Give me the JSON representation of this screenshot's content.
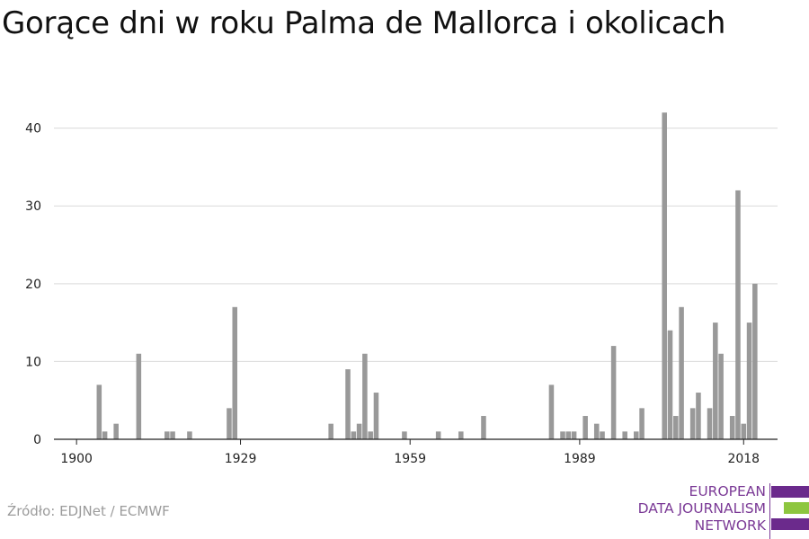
{
  "header": {
    "title": "Gorące dni w roku Palma de Mallorca i okolicach"
  },
  "footer": {
    "source": "Źródło: EDJNet / ECMWF",
    "logo": {
      "lines": [
        "EUROPEAN",
        "DATA JOURNALISM",
        "NETWORK"
      ],
      "colors": {
        "purple": "#6b2a8c",
        "green": "#8dc63f"
      }
    }
  },
  "chart_data": {
    "type": "bar",
    "title": "Gorące dni w roku Palma de Mallorca i okolicach",
    "xlabel": "",
    "ylabel": "",
    "xlim": [
      1896,
      2024
    ],
    "ylim": [
      0,
      44
    ],
    "x_ticks": [
      1900,
      1929,
      1959,
      1989,
      2018
    ],
    "y_ticks": [
      0,
      10,
      20,
      30,
      40
    ],
    "grid": true,
    "bar_color": "#999999",
    "series": [
      {
        "x": [
          1904,
          1905,
          1907,
          1911,
          1916,
          1917,
          1920,
          1927,
          1928,
          1945,
          1948,
          1949,
          1950,
          1951,
          1952,
          1953,
          1958,
          1964,
          1968,
          1972,
          1984,
          1986,
          1987,
          1988,
          1990,
          1992,
          1993,
          1995,
          1997,
          1999,
          2000,
          2004,
          2005,
          2006,
          2007,
          2009,
          2010,
          2012,
          2013,
          2014,
          2016,
          2017,
          2018,
          2019,
          2020
        ],
        "values": [
          7,
          1,
          2,
          11,
          1,
          1,
          1,
          4,
          17,
          2,
          9,
          1,
          2,
          11,
          1,
          6,
          1,
          1,
          1,
          3,
          7,
          1,
          1,
          1,
          3,
          2,
          1,
          12,
          1,
          1,
          4,
          42,
          14,
          3,
          17,
          4,
          6,
          4,
          15,
          11,
          3,
          32,
          2,
          15,
          20
        ]
      }
    ]
  }
}
